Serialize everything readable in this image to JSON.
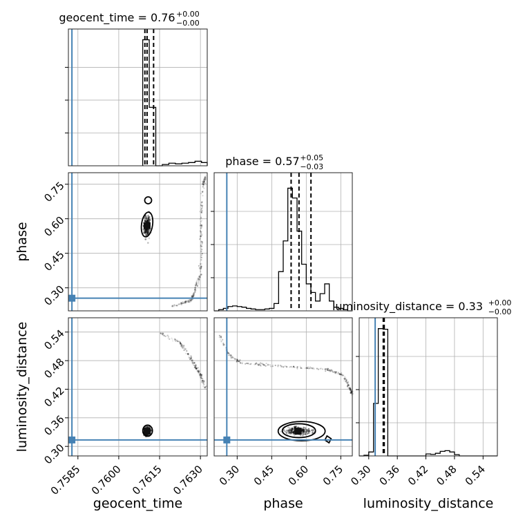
{
  "chart_data": {
    "type": "corner",
    "parameters": [
      {
        "key": "geocent_time",
        "label": "geocent_time",
        "title_main": "geocent_time = 0.76",
        "title_plus": "+0.00",
        "title_minus": "−0.00",
        "range": [
          0.75815,
          0.76325
        ],
        "ticks": [
          0.7585,
          0.76,
          0.7615,
          0.763
        ],
        "tick_labels": [
          "0.7585",
          "0.7600",
          "0.7615",
          "0.7630"
        ],
        "truth": 0.75828,
        "quantiles": [
          0.76096,
          0.76104,
          0.76128
        ],
        "hist_edges": [
          0.76088,
          0.76112,
          0.76136,
          0.7616,
          0.76184,
          0.76208,
          0.76232,
          0.76256,
          0.7628,
          0.76304,
          0.76325
        ],
        "hist_counts": [
          0.97,
          0.45,
          0.0,
          0.01,
          0.02,
          0.015,
          0.02,
          0.025,
          0.035,
          0.025
        ],
        "hist_ymax": 1.0
      },
      {
        "key": "phase",
        "label": "phase",
        "title_main": "phase = 0.57",
        "title_plus": "+0.05",
        "title_minus": "−0.03",
        "range": [
          0.2,
          0.8
        ],
        "ticks": [
          0.3,
          0.45,
          0.6,
          0.75
        ],
        "tick_labels": [
          "0.30",
          "0.45",
          "0.60",
          "0.75"
        ],
        "truth": 0.255,
        "quantiles": [
          0.5343,
          0.5685,
          0.6205
        ],
        "hist_edges": [
          0.2,
          0.22,
          0.24,
          0.26,
          0.28,
          0.3,
          0.32,
          0.34,
          0.36,
          0.38,
          0.4,
          0.42,
          0.44,
          0.46,
          0.48,
          0.5,
          0.52,
          0.54,
          0.56,
          0.58,
          0.6,
          0.62,
          0.64,
          0.66,
          0.68,
          0.7,
          0.72,
          0.74,
          0.76,
          0.78,
          0.8
        ],
        "hist_counts": [
          0.0,
          0.01,
          0.02,
          0.035,
          0.04,
          0.035,
          0.03,
          0.02,
          0.015,
          0.01,
          0.01,
          0.015,
          0.02,
          0.06,
          0.32,
          0.57,
          1.0,
          0.92,
          0.65,
          0.38,
          0.22,
          0.15,
          0.08,
          0.14,
          0.22,
          0.08,
          0.03,
          0.02,
          0.01,
          0.0
        ],
        "hist_ymax": 1.07
      },
      {
        "key": "luminosity_distance",
        "label": "luminosity_distance",
        "title_main": "luminosity_distance = 0.33",
        "title_plus": "+0.00",
        "title_minus": "−0.00",
        "range": [
          0.28,
          0.57
        ],
        "ticks": [
          0.3,
          0.36,
          0.42,
          0.48,
          0.54
        ],
        "tick_labels": [
          "0.30",
          "0.36",
          "0.42",
          "0.48",
          "0.54"
        ],
        "truth": 0.3135,
        "quantiles": [
          0.3305,
          0.3315,
          0.3325
        ],
        "hist_edges": [
          0.28,
          0.29,
          0.3,
          0.31,
          0.32,
          0.33,
          0.34,
          0.35,
          0.36,
          0.37,
          0.38,
          0.39,
          0.4,
          0.41,
          0.42,
          0.43,
          0.44,
          0.45,
          0.46,
          0.47,
          0.48,
          0.49,
          0.5,
          0.51,
          0.52,
          0.53,
          0.54,
          0.55,
          0.56,
          0.57
        ],
        "hist_counts": [
          0.0,
          0.005,
          0.03,
          0.4,
          0.97,
          0.965,
          0.0,
          0.0,
          0.0,
          0.0,
          0.0,
          0.0,
          0.0,
          0.0,
          0.015,
          0.012,
          0.02,
          0.035,
          0.04,
          0.03,
          0.01,
          0.0,
          0.0,
          0.0,
          0.0,
          0.0,
          0.0,
          0.0,
          0.0
        ],
        "hist_ymax": 1.0
      }
    ],
    "grid": true
  }
}
